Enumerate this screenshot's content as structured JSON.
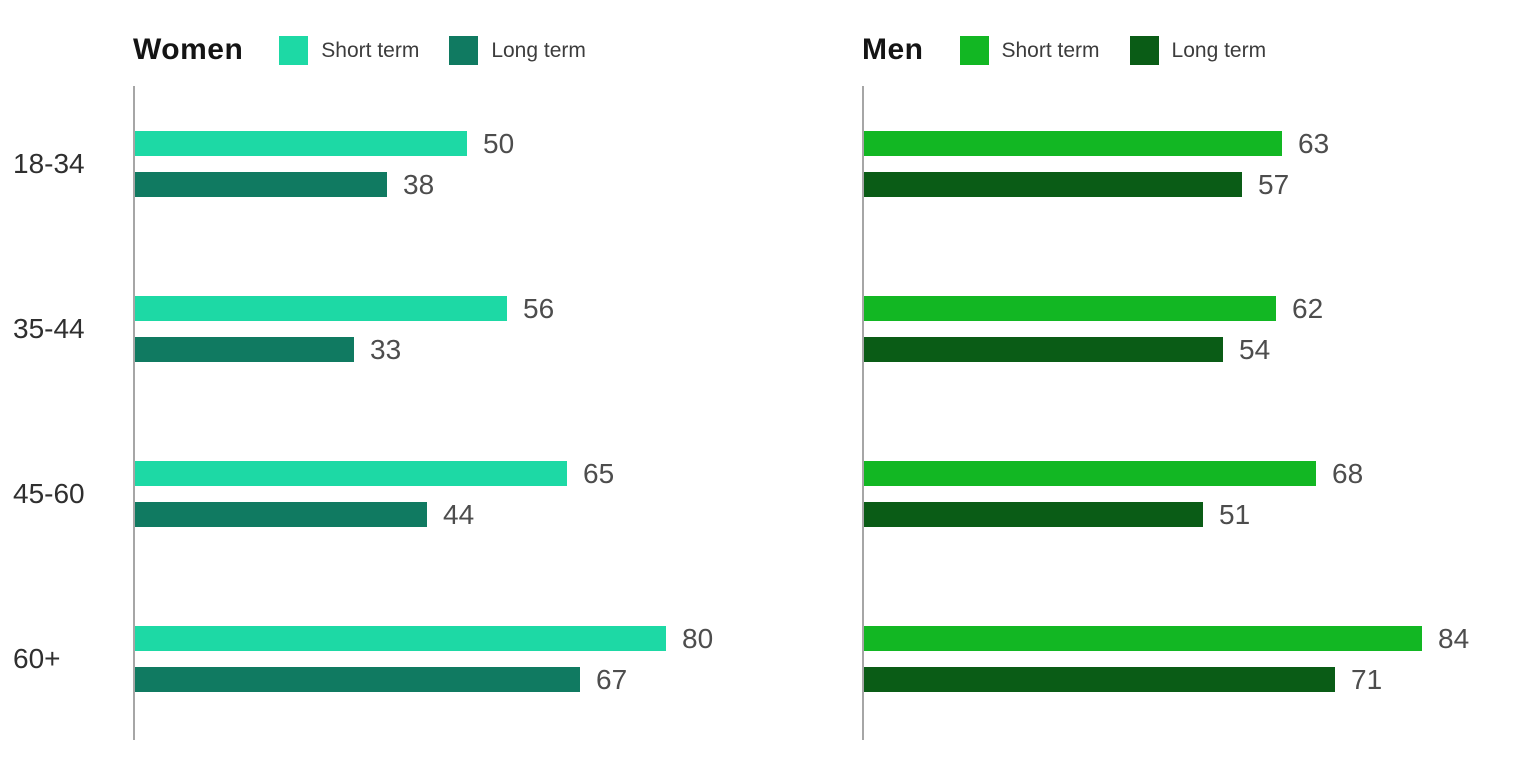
{
  "chart_data": [
    {
      "type": "bar",
      "orientation": "horizontal",
      "title": "Women",
      "categories": [
        "18-34",
        "35-44",
        "45-60",
        "60+"
      ],
      "series": [
        {
          "name": "Short term",
          "color": "#1dd9a5",
          "values": [
            50,
            56,
            65,
            80
          ]
        },
        {
          "name": "Long term",
          "color": "#107a61",
          "values": [
            38,
            33,
            44,
            67
          ]
        }
      ],
      "xlim": [
        0,
        100
      ],
      "legend_position": "top",
      "grid": false,
      "value_labels": true,
      "show_category_labels": true
    },
    {
      "type": "bar",
      "orientation": "horizontal",
      "title": "Men",
      "categories": [
        "18-34",
        "35-44",
        "45-60",
        "60+"
      ],
      "series": [
        {
          "name": "Short term",
          "color": "#12b723",
          "values": [
            63,
            62,
            68,
            84
          ]
        },
        {
          "name": "Long term",
          "color": "#0a5c16",
          "values": [
            57,
            54,
            51,
            71
          ]
        }
      ],
      "xlim": [
        0,
        100
      ],
      "legend_position": "top",
      "grid": false,
      "value_labels": true,
      "show_category_labels": false
    }
  ],
  "styles": {
    "background": "#ffffff",
    "axis_color": "#a6a6a6",
    "title_color": "#141414",
    "legend_text_color": "#3c3c3c",
    "category_label_color": "#2f2f2f",
    "value_label_color": "#4d4d4d"
  }
}
